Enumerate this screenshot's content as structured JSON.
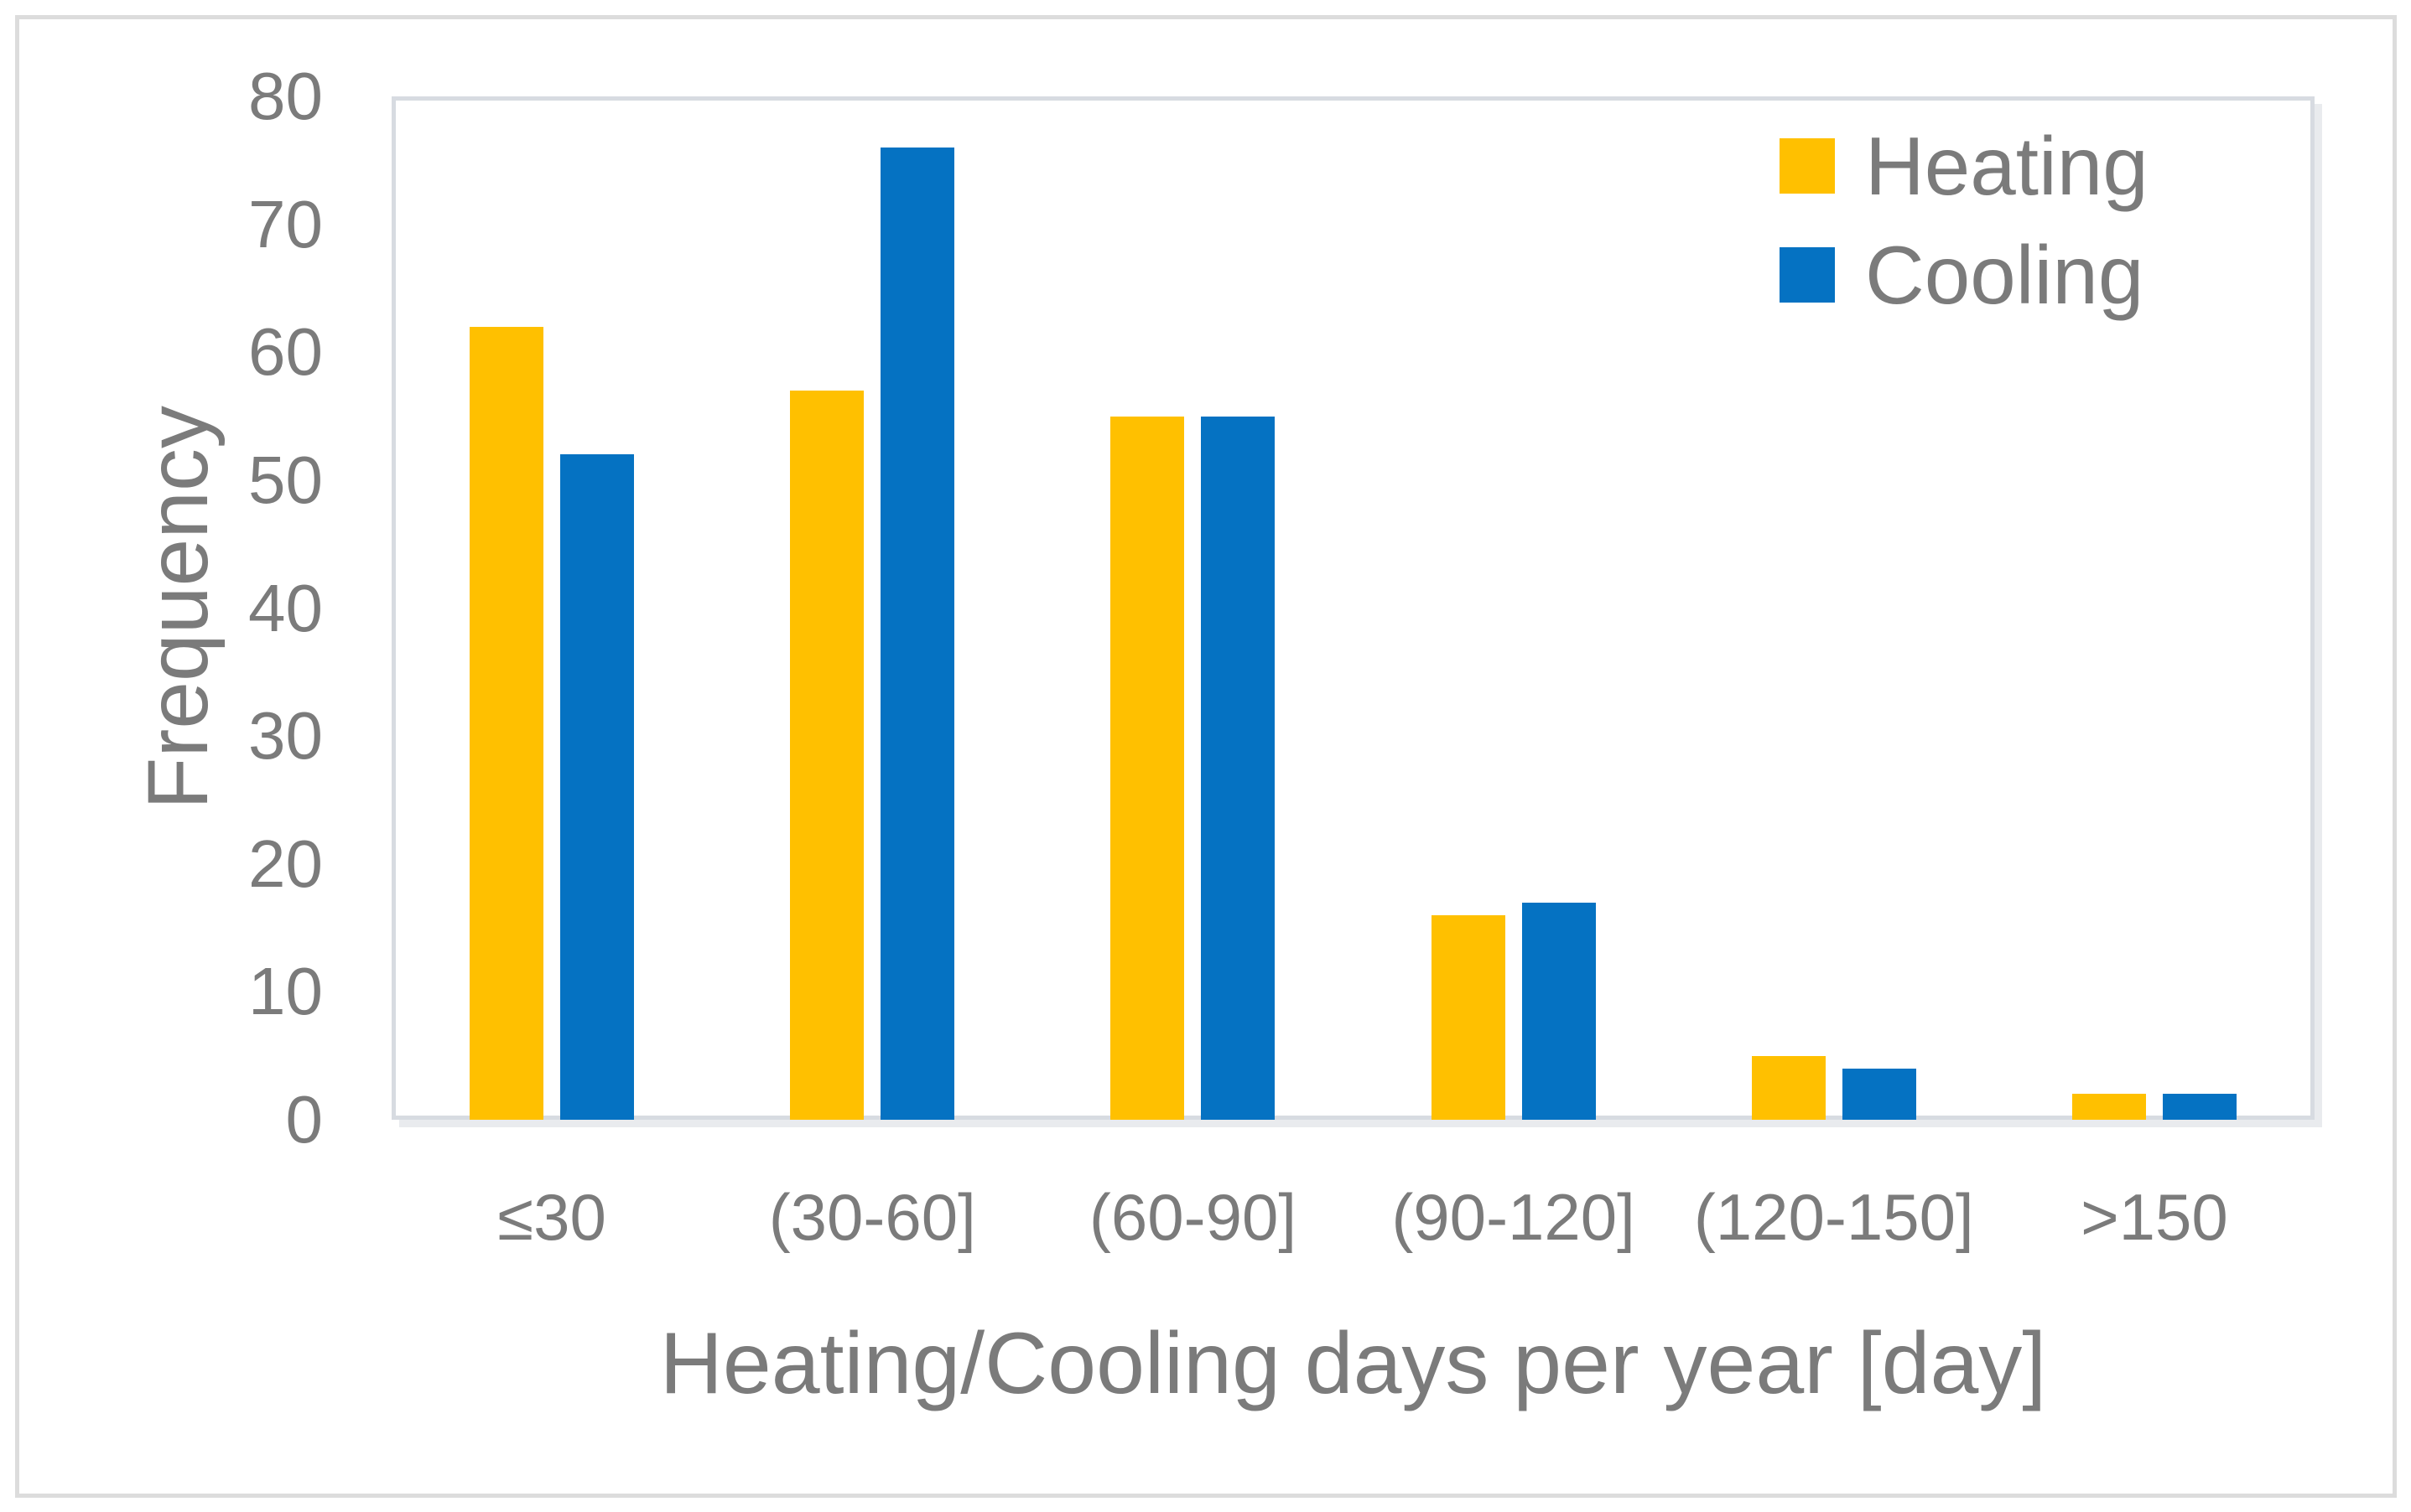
{
  "figure": {
    "background_color": "#ffffff",
    "outer_border_color": "#dcdcdc",
    "text_color": "#7b7b7b",
    "plot_border_color": "#d7dbe1"
  },
  "chart_data": {
    "type": "bar",
    "title": "",
    "categories": [
      "≤30",
      "(30-60]",
      "(60-90]",
      "(90-120]",
      "(120-150]",
      ">150"
    ],
    "series": [
      {
        "name": "Heating",
        "color": "#FFC000",
        "values": [
          62,
          57,
          55,
          16,
          5,
          2
        ]
      },
      {
        "name": "Cooling",
        "color": "#0572C2",
        "values": [
          52,
          76,
          55,
          17,
          4,
          2
        ]
      }
    ],
    "xlabel": "Heating/Cooling days per year [day]",
    "ylabel": "Frequency",
    "ylim": [
      0,
      80
    ],
    "ytick_step": 10,
    "yticks": [
      0,
      10,
      20,
      30,
      40,
      50,
      60,
      70,
      80
    ],
    "grid": false,
    "legend_position": "top-right"
  }
}
